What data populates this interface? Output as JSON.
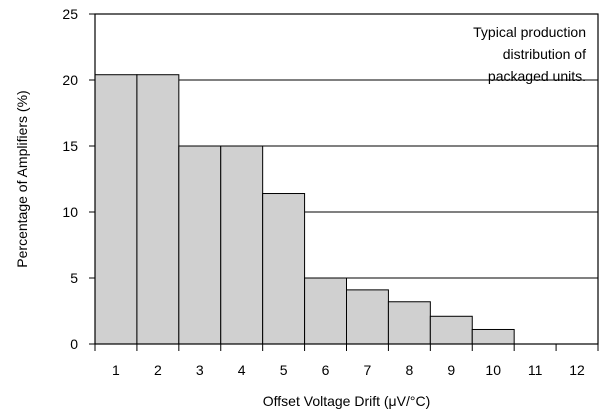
{
  "chart_data": {
    "type": "bar",
    "title": "",
    "xlabel": "Offset Voltage Drift (μV/°C)",
    "ylabel": "Percentage of Amplifiers (%)",
    "ylim": [
      0,
      25
    ],
    "yticks": [
      0,
      5,
      10,
      15,
      20,
      25
    ],
    "categories": [
      "1",
      "2",
      "3",
      "4",
      "5",
      "6",
      "7",
      "8",
      "9",
      "10",
      "11",
      "12"
    ],
    "values": [
      20.4,
      20.4,
      15,
      15,
      11.4,
      5,
      4.1,
      3.2,
      2.1,
      1.1,
      0,
      0
    ],
    "grid": "horizontal",
    "annotation": [
      "Typical production",
      "distribution of",
      "packaged units."
    ],
    "colors": {
      "bar_fill": "#d0d0d0",
      "stroke": "#000000"
    }
  }
}
